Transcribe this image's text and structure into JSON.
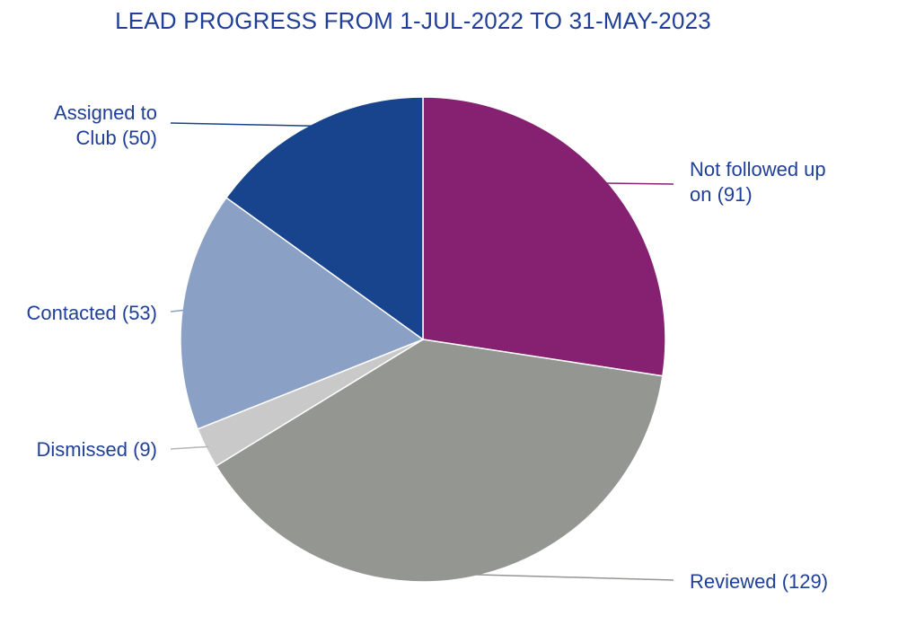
{
  "chart_data": {
    "type": "pie",
    "title": "LEAD PROGRESS FROM 1-JUL-2022 TO 31-MAY-2023",
    "label_color": "#1f3f99",
    "slices": [
      {
        "name": "Not followed up on",
        "value": 91,
        "color": "#862172",
        "label_lines": [
          "Not followed up",
          "on (91)"
        ],
        "side": "right",
        "text_anchor": "start"
      },
      {
        "name": "Reviewed",
        "value": 129,
        "color": "#949692",
        "label_lines": [
          "Reviewed (129)"
        ],
        "side": "right",
        "text_anchor": "start"
      },
      {
        "name": "Dismissed",
        "value": 9,
        "color": "#c9c9c9",
        "label_lines": [
          "Dismissed (9)"
        ],
        "side": "left",
        "text_anchor": "end"
      },
      {
        "name": "Contacted",
        "value": 53,
        "color": "#8aa0c4",
        "label_lines": [
          "Contacted (53)"
        ],
        "side": "left",
        "text_anchor": "end"
      },
      {
        "name": "Assigned to Club",
        "value": 50,
        "color": "#17448c",
        "label_lines": [
          "Assigned to",
          "Club (50)"
        ],
        "side": "left",
        "text_anchor": "end"
      }
    ]
  }
}
